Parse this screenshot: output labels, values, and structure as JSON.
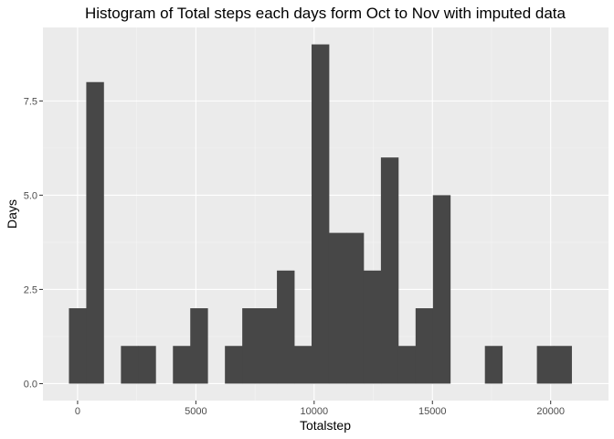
{
  "chart_data": {
    "type": "bar",
    "title": "Histogram of Total steps each days form Oct to Nov with imputed data",
    "xlabel": "Totalstep",
    "ylabel": "Days",
    "bin_width": 732.7,
    "first_bin_left": -366,
    "xlim": [
      -1465,
      22445
    ],
    "ylim": [
      -0.45,
      9.45
    ],
    "x_ticks": [
      0,
      5000,
      10000,
      15000,
      20000
    ],
    "x_tick_labels": [
      "0",
      "5000",
      "10000",
      "15000",
      "20000"
    ],
    "y_ticks": [
      0,
      2.5,
      5,
      7.5
    ],
    "y_tick_labels": [
      "0.0",
      "2.5",
      "5.0",
      "7.5"
    ],
    "values": [
      2,
      8,
      0,
      1,
      1,
      0,
      1,
      2,
      0,
      1,
      2,
      2,
      3,
      1,
      9,
      4,
      4,
      3,
      6,
      1,
      2,
      5,
      0,
      0,
      1,
      0,
      0,
      1,
      1
    ],
    "grid": true,
    "legend": "none",
    "colors": {
      "panel": "#ebebeb",
      "grid_major": "#ffffff",
      "grid_minor": "#f5f5f5",
      "bar": "#474747",
      "tick": "#333333",
      "tick_text": "#4d4d4d"
    }
  }
}
